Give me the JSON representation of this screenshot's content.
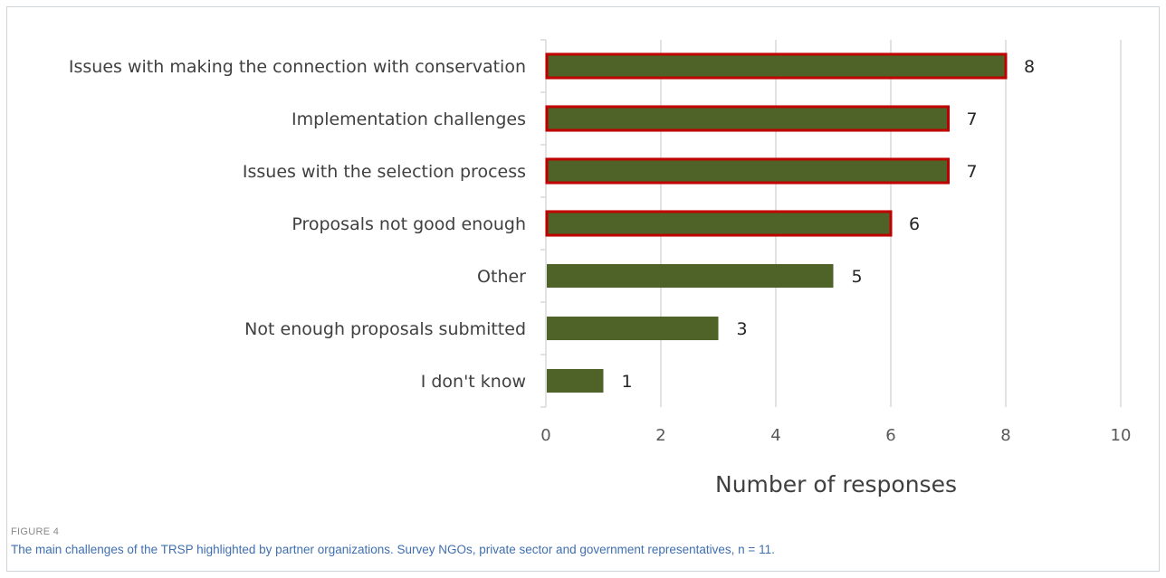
{
  "chart_data": {
    "type": "bar",
    "orientation": "horizontal",
    "categories": [
      "Issues with making the connection with conservation",
      "Implementation challenges",
      "Issues with the selection process",
      "Proposals not good enough",
      "Other",
      "Not enough proposals submitted",
      "I don't know"
    ],
    "values": [
      8,
      7,
      7,
      6,
      5,
      3,
      1
    ],
    "highlighted": [
      true,
      true,
      true,
      true,
      false,
      false,
      false
    ],
    "data_labels": [
      "8",
      "7",
      "7",
      "6",
      "5",
      "3",
      "1"
    ],
    "xlabel": "Number of responses",
    "ylabel": "",
    "xlim": [
      0,
      10
    ],
    "x_ticks": [
      0,
      2,
      4,
      6,
      8,
      10
    ],
    "x_tick_labels": [
      "0",
      "2",
      "4",
      "6",
      "8",
      "10"
    ],
    "grid": "vertical",
    "colors": {
      "bar_fill": "#4f6228",
      "highlight_outline": "#c00000",
      "grid": "#d9d9d9",
      "axis": "#d9d9d9"
    }
  },
  "figure": {
    "label": "FIGURE 4",
    "caption": "The main challenges of the TRSP highlighted by partner organizations. Survey NGOs, private sector and government representatives, n = 11."
  }
}
